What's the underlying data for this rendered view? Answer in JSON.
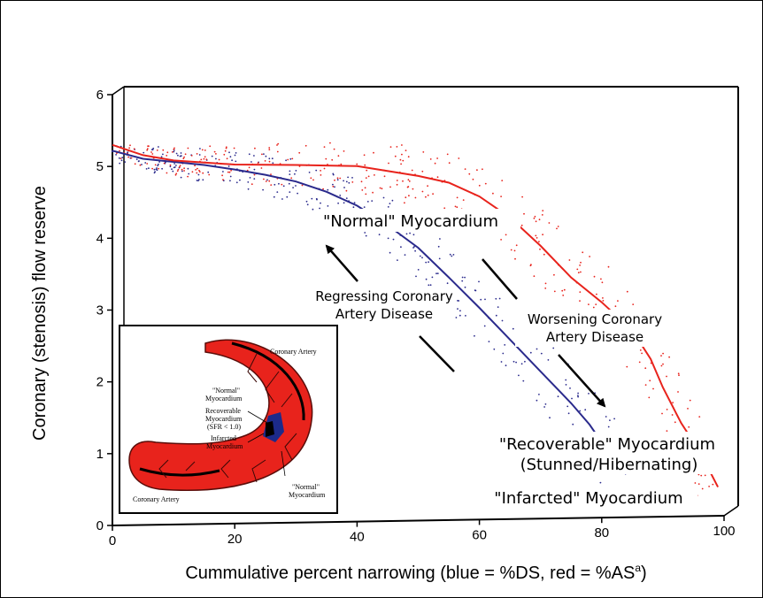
{
  "chart_data": {
    "type": "scatter",
    "xlabel": "Cummulative percent narrowing (blue = %DS, red = %AS",
    "xlabel_superscript": "a",
    "xlabel_suffix": ")",
    "ylabel": "Coronary (stenosis) flow reserve",
    "xlim": [
      0,
      100
    ],
    "ylim": [
      0,
      6
    ],
    "xticks": [
      0,
      20,
      40,
      60,
      80,
      100
    ],
    "yticks": [
      0,
      1,
      2,
      3,
      4,
      5,
      6
    ],
    "grid": false,
    "colors": {
      "blue": "#2a2a8c",
      "red": "#e8231c",
      "inset_red": "#e8231c",
      "inset_blue": "#1c2a8a"
    },
    "series": [
      {
        "color": "blue",
        "curve": [
          [
            0,
            5.22
          ],
          [
            5,
            5.1
          ],
          [
            10,
            5.05
          ],
          [
            15,
            5.0
          ],
          [
            20,
            4.93
          ],
          [
            25,
            4.85
          ],
          [
            30,
            4.75
          ],
          [
            35,
            4.6
          ],
          [
            40,
            4.4
          ],
          [
            45,
            4.12
          ],
          [
            50,
            3.8
          ],
          [
            55,
            3.38
          ],
          [
            60,
            2.95
          ],
          [
            65,
            2.5
          ],
          [
            70,
            2.05
          ],
          [
            75,
            1.6
          ],
          [
            78,
            1.3
          ],
          [
            82,
            0.8
          ],
          [
            84,
            0.6
          ]
        ]
      },
      {
        "color": "red",
        "curve": [
          [
            0,
            5.3
          ],
          [
            5,
            5.15
          ],
          [
            10,
            5.07
          ],
          [
            20,
            5.0
          ],
          [
            30,
            4.98
          ],
          [
            40,
            4.95
          ],
          [
            50,
            4.8
          ],
          [
            55,
            4.7
          ],
          [
            60,
            4.5
          ],
          [
            65,
            4.2
          ],
          [
            70,
            3.8
          ],
          [
            75,
            3.35
          ],
          [
            80,
            3.0
          ],
          [
            85,
            2.6
          ],
          [
            88,
            2.2
          ],
          [
            90,
            1.8
          ],
          [
            93,
            1.3
          ],
          [
            96,
            0.9
          ],
          [
            99,
            0.4
          ]
        ]
      }
    ],
    "annotations": [
      {
        "text": "\"Normal\" Myocardium",
        "x": 46,
        "y": 4.3
      },
      {
        "text": "Regressing Coronary",
        "x": 45,
        "y": 3.2
      },
      {
        "text": "Artery Disease",
        "x": 45,
        "y": 2.92
      },
      {
        "text": "Worsening Coronary",
        "x": 73,
        "y": 2.85
      },
      {
        "text": "Artery Disease",
        "x": 73,
        "y": 2.58
      },
      {
        "text": "\"Recoverable\" Myocardium",
        "x": 82,
        "y": 1.05
      },
      {
        "text": "(Stunned/Hibernating)",
        "x": 82,
        "y": 0.75
      },
      {
        "text": "\"Infarcted\" Myocardium",
        "x": 82,
        "y": 0.38
      }
    ],
    "inset": {
      "labels": {
        "coronary_artery_top": "Coronary Artery",
        "normal_left": "\"Normal\"",
        "normal_left_2": "Myocardium",
        "recoverable": "Recoverable",
        "recoverable_2": "Myocardium",
        "recoverable_3": "(SFR < 1.0)",
        "infarcted": "Infarcted",
        "infarcted_2": "Myocardium",
        "coronary_artery_bottom": "Coronary Artery",
        "normal_right": "\"Normal\"",
        "normal_right_2": "Myocardium"
      }
    }
  }
}
